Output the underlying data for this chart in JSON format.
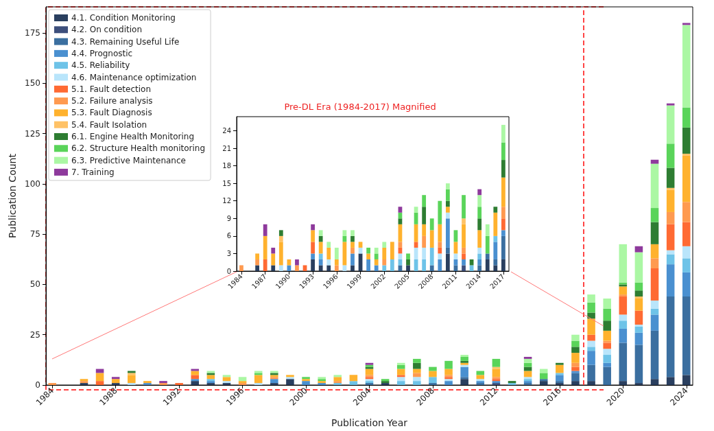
{
  "chart_data": [
    {
      "type": "bar",
      "stacked": true,
      "xlabel": "Publication Year",
      "ylabel": "Publication Count",
      "legend": "top left",
      "grid": false,
      "x": [
        1984,
        1985,
        1986,
        1987,
        1988,
        1989,
        1990,
        1991,
        1992,
        1993,
        1994,
        1995,
        1996,
        1997,
        1998,
        1999,
        2000,
        2001,
        2002,
        2003,
        2004,
        2005,
        2006,
        2007,
        2008,
        2009,
        2010,
        2011,
        2012,
        2013,
        2014,
        2015,
        2016,
        2017,
        2018,
        2019,
        2020,
        2021,
        2022,
        2023,
        2024
      ],
      "xlim": [
        1983.6,
        2024.4
      ],
      "xticks": [
        1984,
        1988,
        1992,
        1996,
        2000,
        2004,
        2008,
        2012,
        2016,
        2020,
        2024
      ],
      "ylim": [
        0,
        188
      ],
      "yticks": [
        0,
        25,
        50,
        75,
        100,
        125,
        150,
        175
      ],
      "ref_lines": [
        {
          "axis": "x",
          "value": 2017.5,
          "color": "#ff4444",
          "line_style": "dashed"
        }
      ],
      "series": [
        {
          "name": "4.1. Condition Monitoring",
          "color": "#2a3f5f",
          "values": [
            0,
            0,
            1,
            0,
            1,
            0,
            0,
            0,
            0,
            2,
            1,
            1,
            0,
            0,
            1,
            3,
            0,
            0,
            0,
            0,
            0,
            1,
            0,
            0,
            0,
            0,
            3,
            0,
            0,
            0,
            0,
            2,
            1,
            2,
            2,
            0,
            2,
            1,
            3,
            4,
            5
          ]
        },
        {
          "name": "4.2. On condition",
          "color": "#3d4f7c",
          "values": [
            0,
            0,
            0,
            0,
            0,
            0,
            0,
            0,
            0,
            0,
            0,
            0,
            0,
            0,
            0,
            0,
            0,
            0,
            0,
            0,
            0,
            0,
            0,
            0,
            0,
            0,
            0,
            0,
            1,
            0,
            0,
            0,
            0,
            0,
            0,
            0,
            0,
            0,
            0,
            0,
            0
          ]
        },
        {
          "name": "4.3. Remaining Useful Life",
          "color": "#3b6fa0",
          "values": [
            0,
            0,
            0,
            0,
            0,
            0,
            0,
            0,
            0,
            0,
            0,
            0,
            0,
            0,
            0,
            0,
            0,
            0,
            0,
            0,
            1,
            0,
            0,
            0,
            1,
            0,
            1,
            1,
            0,
            0,
            1,
            1,
            1,
            4,
            8,
            9,
            19,
            19,
            24,
            40,
            39
          ]
        },
        {
          "name": "4.4. Prognostic",
          "color": "#4a90d0",
          "values": [
            0,
            0,
            0,
            0,
            0,
            0,
            1,
            0,
            0,
            1,
            1,
            0,
            0,
            0,
            2,
            0,
            2,
            1,
            0,
            0,
            0,
            0,
            0,
            0,
            0,
            2,
            5,
            1,
            1,
            0,
            1,
            0,
            3,
            1,
            7,
            2,
            7,
            6,
            8,
            16,
            12
          ]
        },
        {
          "name": "4.5. Reliability",
          "color": "#6ec3e8",
          "values": [
            0,
            0,
            0,
            0,
            0,
            0,
            0,
            0,
            0,
            0,
            1,
            0,
            0,
            0,
            0,
            0,
            0,
            0,
            1,
            2,
            1,
            0,
            2,
            2,
            3,
            0,
            0,
            0,
            0,
            1,
            1,
            0,
            1,
            0,
            2,
            4,
            4,
            3,
            3,
            5,
            7
          ]
        },
        {
          "name": "4.6. Maintenance optimization",
          "color": "#b9e5fb",
          "values": [
            0,
            0,
            0,
            0,
            0,
            1,
            0,
            0,
            0,
            0,
            0,
            1,
            0,
            1,
            0,
            1,
            0,
            0,
            0,
            0,
            1,
            0,
            2,
            2,
            0,
            1,
            1,
            1,
            0,
            0,
            1,
            0,
            0,
            0,
            3,
            3,
            3,
            1,
            4,
            2,
            6
          ]
        },
        {
          "name": "5.1. Fault detection",
          "color": "#ff6a33",
          "values": [
            0,
            0,
            0,
            2,
            0,
            0,
            0,
            0,
            1,
            2,
            0,
            0,
            0,
            0,
            0,
            0,
            0,
            0,
            0,
            0,
            1,
            0,
            1,
            0,
            0,
            1,
            0,
            0,
            1,
            0,
            0,
            0,
            0,
            2,
            3,
            3,
            9,
            7,
            16,
            13,
            12
          ]
        },
        {
          "name": "5.2. Failure analysis",
          "color": "#ff9a50",
          "values": [
            1,
            0,
            1,
            0,
            0,
            0,
            0,
            1,
            0,
            0,
            0,
            0,
            1,
            0,
            1,
            0,
            0,
            0,
            1,
            0,
            1,
            0,
            0,
            2,
            0,
            1,
            0,
            0,
            1,
            0,
            0,
            0,
            0,
            2,
            0,
            1,
            1,
            0,
            5,
            6,
            10
          ]
        },
        {
          "name": "5.3. Fault Diagnosis",
          "color": "#ffb22e",
          "values": [
            0,
            0,
            1,
            4,
            2,
            4,
            1,
            0,
            0,
            2,
            2,
            2,
            1,
            4,
            1,
            1,
            1,
            1,
            2,
            3,
            3,
            0,
            3,
            2,
            3,
            3,
            1,
            2,
            4,
            0,
            3,
            0,
            4,
            5,
            8,
            5,
            4,
            6,
            7,
            11,
            23
          ]
        },
        {
          "name": "5.4. Fault Isolation",
          "color": "#ffc266",
          "values": [
            0,
            0,
            0,
            0,
            0,
            1,
            0,
            0,
            0,
            0,
            0,
            0,
            0,
            0,
            0,
            0,
            0,
            0,
            0,
            0,
            0,
            0,
            0,
            0,
            0,
            0,
            0,
            0,
            1,
            0,
            0,
            0,
            0,
            0,
            0,
            0,
            0,
            1,
            0,
            1,
            1
          ]
        },
        {
          "name": "6.1. Engine Health Monitoring",
          "color": "#2e7d32",
          "values": [
            0,
            0,
            0,
            0,
            0,
            1,
            0,
            0,
            0,
            0,
            1,
            0,
            0,
            0,
            1,
            0,
            0,
            0,
            0,
            0,
            1,
            1,
            0,
            3,
            0,
            0,
            1,
            0,
            0,
            1,
            2,
            0,
            1,
            3,
            3,
            5,
            1,
            3,
            11,
            10,
            13
          ]
        },
        {
          "name": "6.2. Structure Health monitoring",
          "color": "#5ad45a",
          "values": [
            0,
            0,
            0,
            0,
            0,
            0,
            0,
            0,
            0,
            0,
            0,
            0,
            0,
            1,
            0,
            0,
            1,
            1,
            0,
            0,
            1,
            1,
            2,
            2,
            2,
            4,
            2,
            2,
            4,
            0,
            2,
            3,
            0,
            3,
            5,
            6,
            1,
            4,
            7,
            12,
            10
          ]
        },
        {
          "name": "6.3. Predictive Maintenance",
          "color": "#abf7a4",
          "values": [
            0,
            0,
            0,
            0,
            0,
            0,
            0,
            0,
            0,
            0,
            1,
            1,
            2,
            1,
            1,
            0,
            0,
            1,
            1,
            0,
            0,
            0,
            1,
            0,
            0,
            0,
            1,
            0,
            0,
            0,
            2,
            2,
            0,
            3,
            4,
            5,
            19,
            15,
            22,
            19,
            41
          ]
        },
        {
          "name": "7. Training",
          "color": "#8e3a9c",
          "values": [
            0,
            0,
            0,
            2,
            1,
            0,
            0,
            1,
            0,
            1,
            0,
            0,
            0,
            0,
            0,
            0,
            0,
            0,
            0,
            0,
            1,
            0,
            0,
            0,
            0,
            0,
            0,
            0,
            0,
            0,
            1,
            0,
            0,
            0,
            0,
            0,
            0,
            3,
            2,
            1,
            1
          ]
        }
      ]
    },
    {
      "type": "bar",
      "stacked": true,
      "title": "Pre-DL Era (1984-2017) Magnified",
      "grid": false,
      "x": [
        1984,
        1985,
        1986,
        1987,
        1988,
        1989,
        1990,
        1991,
        1992,
        1993,
        1994,
        1995,
        1996,
        1997,
        1998,
        1999,
        2000,
        2001,
        2002,
        2003,
        2004,
        2005,
        2006,
        2007,
        2008,
        2009,
        2010,
        2011,
        2012,
        2013,
        2014,
        2015,
        2016,
        2017
      ],
      "xlim": [
        1983.4,
        2017.7
      ],
      "xticks": [
        1984,
        1987,
        1990,
        1993,
        1996,
        1999,
        2002,
        2005,
        2008,
        2011,
        2014,
        2017
      ],
      "ylim": [
        0,
        26.4
      ],
      "yticks": [
        0,
        3,
        6,
        9,
        12,
        15,
        18,
        21,
        24
      ],
      "series": [
        {
          "color": "#2a3f5f",
          "values": [
            0,
            0,
            1,
            0,
            1,
            0,
            0,
            0,
            0,
            2,
            1,
            1,
            0,
            0,
            1,
            3,
            0,
            0,
            0,
            0,
            0,
            1,
            0,
            0,
            0,
            0,
            3,
            0,
            0,
            0,
            0,
            2,
            1,
            2
          ]
        },
        {
          "color": "#3d4f7c",
          "values": [
            0,
            0,
            0,
            0,
            0,
            0,
            0,
            0,
            0,
            0,
            0,
            0,
            0,
            0,
            0,
            0,
            0,
            0,
            0,
            0,
            0,
            0,
            0,
            0,
            0,
            0,
            0,
            0,
            1,
            0,
            0,
            0,
            0,
            0
          ]
        },
        {
          "color": "#3b6fa0",
          "values": [
            0,
            0,
            0,
            0,
            0,
            0,
            0,
            0,
            0,
            0,
            0,
            0,
            0,
            0,
            0,
            0,
            0,
            0,
            0,
            0,
            1,
            0,
            0,
            0,
            1,
            0,
            1,
            1,
            0,
            0,
            1,
            1,
            1,
            4
          ]
        },
        {
          "color": "#4a90d0",
          "values": [
            0,
            0,
            0,
            0,
            0,
            0,
            1,
            0,
            0,
            1,
            1,
            0,
            0,
            0,
            2,
            0,
            2,
            1,
            0,
            0,
            0,
            0,
            0,
            0,
            0,
            2,
            5,
            1,
            1,
            0,
            1,
            0,
            3,
            1
          ]
        },
        {
          "color": "#6ec3e8",
          "values": [
            0,
            0,
            0,
            0,
            0,
            0,
            0,
            0,
            0,
            0,
            1,
            0,
            0,
            0,
            0,
            0,
            0,
            0,
            1,
            2,
            1,
            0,
            2,
            2,
            3,
            0,
            0,
            0,
            0,
            1,
            1,
            0,
            1,
            0
          ]
        },
        {
          "color": "#b9e5fb",
          "values": [
            0,
            0,
            0,
            0,
            0,
            1,
            0,
            0,
            0,
            0,
            0,
            1,
            0,
            1,
            0,
            1,
            0,
            0,
            0,
            0,
            1,
            0,
            2,
            2,
            0,
            1,
            1,
            1,
            0,
            0,
            1,
            0,
            0,
            0
          ]
        },
        {
          "color": "#ff6a33",
          "values": [
            0,
            0,
            0,
            2,
            0,
            0,
            0,
            0,
            1,
            2,
            0,
            0,
            0,
            0,
            0,
            0,
            0,
            0,
            0,
            0,
            1,
            0,
            1,
            0,
            0,
            1,
            0,
            0,
            1,
            0,
            0,
            0,
            0,
            2
          ]
        },
        {
          "color": "#ff9a50",
          "values": [
            1,
            0,
            1,
            0,
            0,
            0,
            0,
            1,
            0,
            0,
            0,
            0,
            1,
            0,
            1,
            0,
            0,
            0,
            1,
            0,
            1,
            0,
            0,
            2,
            0,
            1,
            0,
            0,
            1,
            0,
            0,
            0,
            0,
            2
          ]
        },
        {
          "color": "#ffb22e",
          "values": [
            0,
            0,
            1,
            4,
            2,
            4,
            1,
            0,
            0,
            2,
            2,
            2,
            1,
            4,
            1,
            1,
            1,
            1,
            2,
            3,
            3,
            0,
            3,
            2,
            3,
            3,
            1,
            2,
            4,
            0,
            3,
            0,
            4,
            5
          ]
        },
        {
          "color": "#ffc266",
          "values": [
            0,
            0,
            0,
            0,
            0,
            1,
            0,
            0,
            0,
            0,
            0,
            0,
            0,
            0,
            0,
            0,
            0,
            0,
            0,
            0,
            0,
            0,
            0,
            0,
            0,
            0,
            0,
            0,
            1,
            0,
            0,
            0,
            0,
            0
          ]
        },
        {
          "color": "#2e7d32",
          "values": [
            0,
            0,
            0,
            0,
            0,
            1,
            0,
            0,
            0,
            0,
            1,
            0,
            0,
            0,
            1,
            0,
            0,
            0,
            0,
            0,
            1,
            1,
            0,
            3,
            0,
            0,
            1,
            0,
            0,
            1,
            2,
            0,
            1,
            3
          ]
        },
        {
          "color": "#5ad45a",
          "values": [
            0,
            0,
            0,
            0,
            0,
            0,
            0,
            0,
            0,
            0,
            0,
            0,
            0,
            1,
            0,
            0,
            1,
            1,
            0,
            0,
            1,
            1,
            2,
            2,
            2,
            4,
            2,
            2,
            4,
            0,
            2,
            3,
            0,
            3
          ]
        },
        {
          "color": "#abf7a4",
          "values": [
            0,
            0,
            0,
            0,
            0,
            0,
            0,
            0,
            0,
            0,
            1,
            1,
            2,
            1,
            1,
            0,
            0,
            1,
            1,
            0,
            0,
            0,
            1,
            0,
            0,
            0,
            1,
            0,
            0,
            0,
            2,
            2,
            0,
            3
          ]
        },
        {
          "color": "#8e3a9c",
          "values": [
            0,
            0,
            0,
            2,
            1,
            0,
            0,
            1,
            0,
            1,
            0,
            0,
            0,
            0,
            0,
            0,
            0,
            0,
            0,
            0,
            1,
            0,
            0,
            0,
            0,
            0,
            0,
            0,
            0,
            0,
            1,
            0,
            0,
            0
          ]
        }
      ]
    }
  ]
}
